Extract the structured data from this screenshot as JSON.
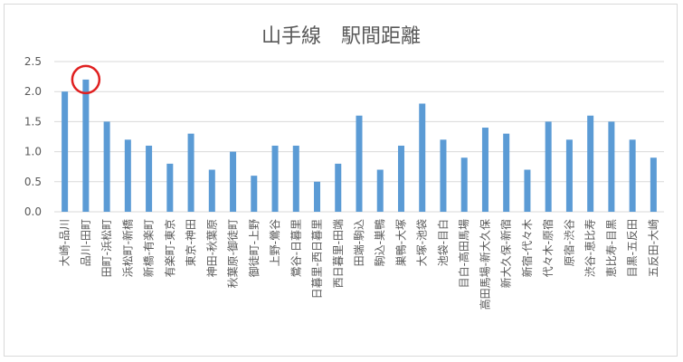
{
  "chart_data": {
    "type": "bar",
    "title": "山手線　駅間距離",
    "xlabel": "",
    "ylabel": "",
    "ylim": [
      0,
      2.5
    ],
    "yticks": [
      "0.0",
      "0.5",
      "1.0",
      "1.5",
      "2.0",
      "2.5"
    ],
    "grid": true,
    "legend": "none",
    "bar_color": "#5b9bd5",
    "gridline_color": "#d9d9d9",
    "highlight": {
      "category": "品川-田町",
      "shape": "circle",
      "color": "#e02020"
    },
    "categories": [
      "大崎-品川",
      "品川-田町",
      "田町-浜松町",
      "浜松町-新橋",
      "新橋-有楽町",
      "有楽町-東京",
      "東京-神田",
      "神田-秋葉原",
      "秋葉原-御徒町",
      "御徒町-上野",
      "上野-鶯谷",
      "鶯谷-日暮里",
      "日暮里-西日暮里",
      "西日暮里-田端",
      "田端-駒込",
      "駒込-巣鴨",
      "巣鴨-大塚",
      "大塚-池袋",
      "池袋-目白",
      "目白-高田馬場",
      "高田馬場-新大久保",
      "新大久保-新宿",
      "新宿-代々木",
      "代々木-原宿",
      "原宿-渋谷",
      "渋谷-恵比寿",
      "恵比寿-目黒",
      "目黒-五反田",
      "五反田-大崎"
    ],
    "values": [
      2.0,
      2.2,
      1.5,
      1.2,
      1.1,
      0.8,
      1.3,
      0.7,
      1.0,
      0.6,
      1.1,
      1.1,
      0.5,
      0.8,
      1.6,
      0.7,
      1.1,
      1.8,
      1.2,
      0.9,
      1.4,
      1.3,
      0.7,
      1.5,
      1.2,
      1.6,
      1.5,
      1.2,
      0.9
    ]
  }
}
